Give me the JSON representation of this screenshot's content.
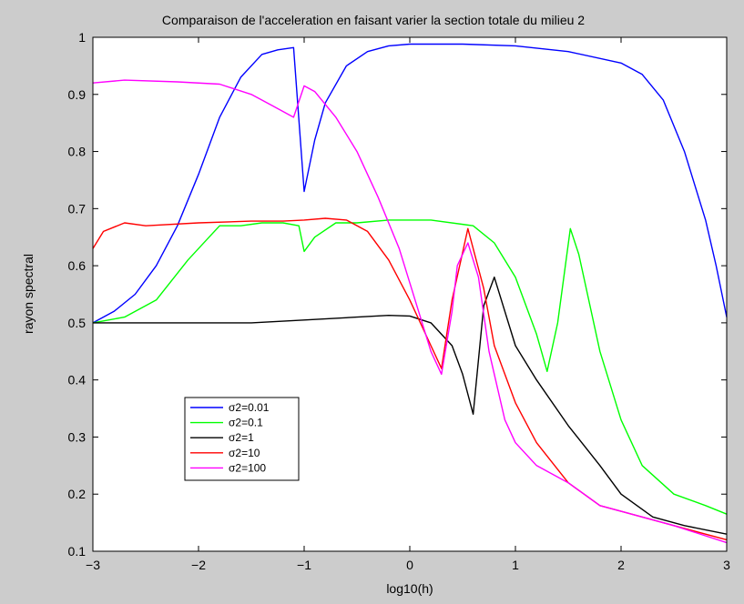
{
  "chart_data": {
    "type": "line",
    "title": "Comparaison de l'acceleration en faisant varier la section totale du milieu 2",
    "xlabel": "log10(h)",
    "ylabel": "rayon spectral",
    "xlim": [
      -3,
      3
    ],
    "ylim": [
      0.1,
      1
    ],
    "xticks": [
      -3,
      -2,
      -1,
      0,
      1,
      2,
      3
    ],
    "xtick_labels": [
      "−3",
      "−2",
      "−1",
      "0",
      "1",
      "2",
      "3"
    ],
    "yticks": [
      0.1,
      0.2,
      0.3,
      0.4,
      0.5,
      0.6,
      0.7,
      0.8,
      0.9,
      1
    ],
    "ytick_labels": [
      "0.1",
      "0.2",
      "0.3",
      "0.4",
      "0.5",
      "0.6",
      "0.7",
      "0.8",
      "0.9",
      "1"
    ],
    "grid": false,
    "legend_position": "lower-left",
    "background": "#cccccc",
    "plot_background": "#ffffff",
    "series": [
      {
        "name": "σ2=0.01",
        "color": "#0000ff",
        "x": [
          -3,
          -2.8,
          -2.6,
          -2.4,
          -2.2,
          -2.0,
          -1.8,
          -1.6,
          -1.4,
          -1.25,
          -1.1,
          -1.0,
          -0.9,
          -0.8,
          -0.6,
          -0.4,
          -0.2,
          0,
          0.5,
          1.0,
          1.5,
          2.0,
          2.2,
          2.4,
          2.6,
          2.8,
          2.9,
          3.0
        ],
        "y": [
          0.5,
          0.52,
          0.55,
          0.6,
          0.67,
          0.76,
          0.86,
          0.93,
          0.97,
          0.978,
          0.982,
          0.73,
          0.82,
          0.885,
          0.95,
          0.975,
          0.985,
          0.988,
          0.988,
          0.985,
          0.975,
          0.955,
          0.935,
          0.89,
          0.8,
          0.68,
          0.6,
          0.51
        ]
      },
      {
        "name": "σ2=0.1",
        "color": "#00ff00",
        "x": [
          -3,
          -2.7,
          -2.4,
          -2.1,
          -1.9,
          -1.8,
          -1.6,
          -1.4,
          -1.2,
          -1.05,
          -1.0,
          -0.9,
          -0.7,
          -0.5,
          -0.2,
          0.2,
          0.6,
          0.8,
          1.0,
          1.2,
          1.3,
          1.4,
          1.52,
          1.6,
          1.8,
          2.0,
          2.2,
          2.5,
          2.8,
          3.0
        ],
        "y": [
          0.5,
          0.51,
          0.54,
          0.61,
          0.65,
          0.67,
          0.67,
          0.675,
          0.675,
          0.67,
          0.625,
          0.65,
          0.675,
          0.675,
          0.68,
          0.68,
          0.67,
          0.64,
          0.58,
          0.48,
          0.415,
          0.5,
          0.665,
          0.62,
          0.45,
          0.33,
          0.25,
          0.2,
          0.18,
          0.165
        ]
      },
      {
        "name": "σ2=1",
        "color": "#000000",
        "x": [
          -3,
          -2.5,
          -2.0,
          -1.5,
          -1.0,
          -0.5,
          -0.2,
          0,
          0.2,
          0.4,
          0.5,
          0.6,
          0.7,
          0.8,
          1.0,
          1.2,
          1.5,
          1.8,
          2.0,
          2.3,
          2.6,
          3.0
        ],
        "y": [
          0.5,
          0.5,
          0.5,
          0.5,
          0.505,
          0.51,
          0.513,
          0.512,
          0.5,
          0.46,
          0.41,
          0.34,
          0.53,
          0.58,
          0.46,
          0.4,
          0.32,
          0.25,
          0.2,
          0.16,
          0.145,
          0.13
        ]
      },
      {
        "name": "σ2=10",
        "color": "#ff0000",
        "x": [
          -3,
          -2.9,
          -2.7,
          -2.5,
          -2.0,
          -1.5,
          -1.2,
          -1.0,
          -0.8,
          -0.6,
          -0.4,
          -0.2,
          0,
          0.2,
          0.3,
          0.4,
          0.55,
          0.7,
          0.8,
          1.0,
          1.2,
          1.5,
          1.8,
          2.0,
          2.5,
          3.0
        ],
        "y": [
          0.63,
          0.66,
          0.675,
          0.67,
          0.675,
          0.678,
          0.678,
          0.68,
          0.683,
          0.68,
          0.66,
          0.61,
          0.54,
          0.46,
          0.42,
          0.54,
          0.665,
          0.56,
          0.46,
          0.36,
          0.29,
          0.22,
          0.18,
          0.17,
          0.145,
          0.12
        ]
      },
      {
        "name": "σ2=100",
        "color": "#ff00ff",
        "x": [
          -3,
          -2.7,
          -2.2,
          -1.8,
          -1.5,
          -1.3,
          -1.1,
          -1.0,
          -0.9,
          -0.7,
          -0.5,
          -0.3,
          -0.1,
          0,
          0.1,
          0.2,
          0.3,
          0.4,
          0.45,
          0.55,
          0.65,
          0.75,
          0.9,
          1.0,
          1.2,
          1.5,
          1.8,
          2.0,
          2.5,
          3.0
        ],
        "y": [
          0.92,
          0.925,
          0.922,
          0.918,
          0.9,
          0.88,
          0.86,
          0.915,
          0.905,
          0.86,
          0.8,
          0.72,
          0.63,
          0.57,
          0.51,
          0.45,
          0.41,
          0.52,
          0.6,
          0.64,
          0.58,
          0.45,
          0.33,
          0.29,
          0.25,
          0.22,
          0.18,
          0.17,
          0.145,
          0.115
        ]
      }
    ]
  }
}
